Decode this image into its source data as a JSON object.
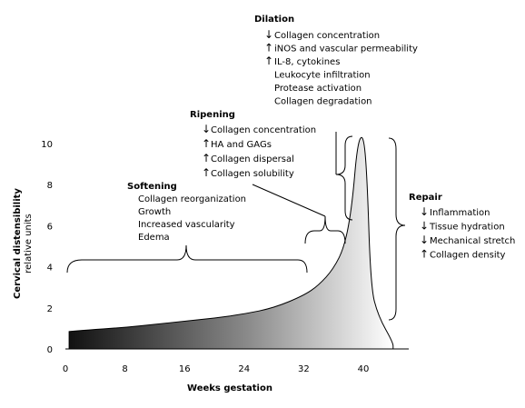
{
  "chart_data": {
    "type": "area",
    "xlabel": "Weeks gestation",
    "ylabel": "Cervical distensibility",
    "ylabel_units": "relative units",
    "x_ticks": [
      0,
      8,
      16,
      24,
      32,
      40
    ],
    "y_ticks": [
      0,
      2,
      4,
      6,
      8,
      10
    ],
    "xlim": [
      0,
      45
    ],
    "ylim": [
      0,
      10.5
    ],
    "grid": false,
    "fill": "gradient black to white",
    "curve": [
      {
        "x": 0.5,
        "y": 0.85
      },
      {
        "x": 4,
        "y": 0.95
      },
      {
        "x": 8,
        "y": 1.05
      },
      {
        "x": 12,
        "y": 1.2
      },
      {
        "x": 16,
        "y": 1.35
      },
      {
        "x": 20,
        "y": 1.5
      },
      {
        "x": 24,
        "y": 1.7
      },
      {
        "x": 28,
        "y": 2.0
      },
      {
        "x": 32,
        "y": 2.6
      },
      {
        "x": 34,
        "y": 3.1
      },
      {
        "x": 36,
        "y": 3.9
      },
      {
        "x": 37.5,
        "y": 5.0
      },
      {
        "x": 38.5,
        "y": 7.0
      },
      {
        "x": 39.2,
        "y": 10.0
      },
      {
        "x": 40,
        "y": 10.5
      },
      {
        "x": 40.5,
        "y": 8.5
      },
      {
        "x": 41,
        "y": 3.0
      },
      {
        "x": 42,
        "y": 1.6
      },
      {
        "x": 44,
        "y": 0.3
      },
      {
        "x": 44,
        "y": 0
      }
    ],
    "phases": [
      {
        "title": "Softening",
        "items": [
          {
            "arrow": "",
            "text": "Collagen reorganization"
          },
          {
            "arrow": "",
            "text": "Growth"
          },
          {
            "arrow": "",
            "text": "Increased vascularity"
          },
          {
            "arrow": "",
            "text": "Edema"
          }
        ]
      },
      {
        "title": "Ripening",
        "items": [
          {
            "arrow": "↓",
            "text": "Collagen concentration"
          },
          {
            "arrow": "↑",
            "text": "HA and GAGs"
          },
          {
            "arrow": "↑",
            "text": "Collagen dispersal"
          },
          {
            "arrow": "↑",
            "text": "Collagen solubility"
          }
        ]
      },
      {
        "title": "Dilation",
        "items": [
          {
            "arrow": "↓",
            "text": "Collagen concentration"
          },
          {
            "arrow": "↑",
            "text": "iNOS and vascular permeability"
          },
          {
            "arrow": "↑",
            "text": "IL-8, cytokines"
          },
          {
            "arrow": "",
            "text": "Leukocyte infiltration"
          },
          {
            "arrow": "",
            "text": "Protease activation"
          },
          {
            "arrow": "",
            "text": "Collagen degradation"
          }
        ]
      },
      {
        "title": "Repair",
        "items": [
          {
            "arrow": "↓",
            "text": "Inflammation"
          },
          {
            "arrow": "↓",
            "text": "Tissue hydration"
          },
          {
            "arrow": "↓",
            "text": "Mechanical stretch"
          },
          {
            "arrow": "↑",
            "text": "Collagen density"
          }
        ]
      }
    ]
  }
}
